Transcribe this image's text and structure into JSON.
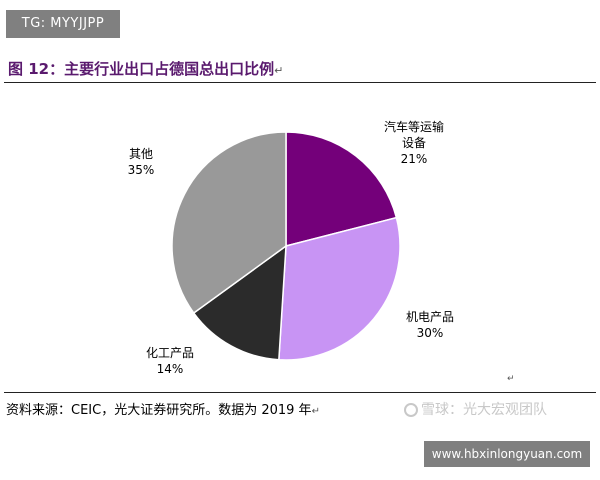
{
  "badge": {
    "text": "TG: MYYJJPP"
  },
  "figure": {
    "title": "图 12：主要行业出口占德国总出口比例",
    "title_suffix": "↵"
  },
  "chart_data": {
    "type": "pie",
    "title": "",
    "start_angle_deg": 0,
    "direction": "clockwise",
    "slices": [
      {
        "label_lines": [
          "汽车等运输",
          "设备"
        ],
        "value": 21,
        "pct_text": "21%",
        "color": "#74007a"
      },
      {
        "label_lines": [
          "机电产品"
        ],
        "value": 30,
        "pct_text": "30%",
        "color": "#c894f4"
      },
      {
        "label_lines": [
          "化工产品"
        ],
        "value": 14,
        "pct_text": "14%",
        "color": "#2b2b2b"
      },
      {
        "label_lines": [
          "其他"
        ],
        "value": 35,
        "pct_text": "35%",
        "color": "#999999"
      }
    ]
  },
  "source": {
    "text": "资料来源：CEIC，光大证券研究所。数据为 2019 年",
    "suffix": "↵"
  },
  "stray_mark": "↵",
  "watermark": {
    "text": "雪球：光大宏观团队"
  },
  "url_badge": {
    "text": "www.hbxinlongyuan.com"
  }
}
